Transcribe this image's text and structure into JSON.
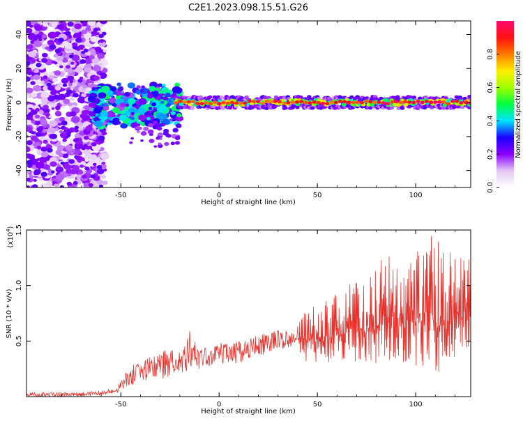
{
  "chart_data": [
    {
      "type": "heatmap",
      "title": "C2E1.2023.098.15.51.G26",
      "xlabel": "Height of straight line (km)",
      "ylabel": "Frequency (Hz)",
      "xlim": [
        -98,
        128
      ],
      "ylim": [
        -50,
        48
      ],
      "xticks": [
        "-50",
        "0",
        "50",
        "100"
      ],
      "yticks": [
        "40",
        "20",
        "0",
        "-20",
        "-40"
      ],
      "colorbar": {
        "label": "Normalized spectral amplitude",
        "range": [
          0,
          1
        ],
        "ticks": [
          "0.0",
          "0.2",
          "0.4",
          "0.6",
          "0.8"
        ],
        "colors": [
          "#ffffff",
          "#e4c8f4",
          "#8a00ff",
          "#1a00ff",
          "#00e4ff",
          "#00ff40",
          "#a0ff00",
          "#ffee00",
          "#ff7a00",
          "#ff1010",
          "#ff0a70"
        ]
      },
      "main_band": {
        "frequency": 0,
        "x_start": -22,
        "x_end": 128,
        "amplitude_range": [
          0.4,
          1.0
        ]
      }
    },
    {
      "type": "line",
      "xlabel": "Height of straight line (km)",
      "ylabel": "SNR (10 * v/v)",
      "yscale_note": "(x10",
      "yscale_exp": "4",
      "yscale_close": ")",
      "xlim": [
        -98,
        128
      ],
      "ylim": [
        0,
        1.5
      ],
      "xticks": [
        "-50",
        "0",
        "50",
        "100"
      ],
      "yticks": [
        "0.5",
        "1.0",
        "1.5"
      ],
      "color": "#e8302a",
      "envelope": {
        "x": [
          -98,
          -70,
          -60,
          -52,
          -50,
          -45,
          -40,
          -30,
          -20,
          -15,
          -10,
          0,
          10,
          20,
          30,
          38,
          45,
          55,
          65,
          75,
          85,
          95,
          105,
          115,
          128
        ],
        "y_low": [
          0.0,
          0.0,
          0.01,
          0.03,
          0.05,
          0.1,
          0.12,
          0.15,
          0.22,
          0.22,
          0.24,
          0.28,
          0.3,
          0.36,
          0.42,
          0.45,
          0.3,
          0.3,
          0.32,
          0.3,
          0.3,
          0.3,
          0.2,
          0.2,
          0.4
        ],
        "y_high": [
          0.04,
          0.04,
          0.05,
          0.08,
          0.15,
          0.28,
          0.32,
          0.42,
          0.45,
          0.6,
          0.42,
          0.48,
          0.5,
          0.55,
          0.6,
          0.58,
          0.82,
          0.88,
          1.02,
          1.05,
          1.3,
          1.18,
          1.5,
          1.35,
          1.25
        ]
      }
    }
  ]
}
